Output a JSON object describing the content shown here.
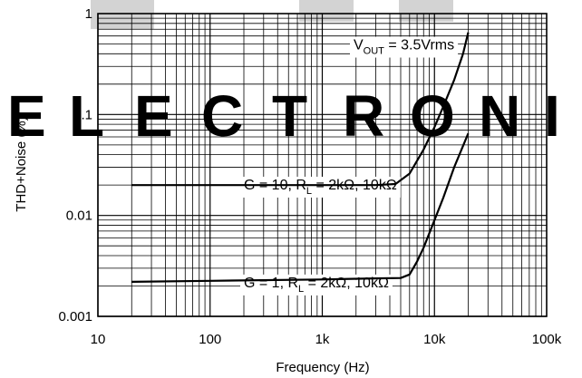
{
  "watermark": {
    "text": "ELECTRONIC",
    "color": "#d3d3d3"
  },
  "chart_data": {
    "type": "line",
    "title": "",
    "xlabel": "Frequency (Hz)",
    "ylabel": "THD+Noise (%)",
    "xscale": "log",
    "yscale": "log",
    "xlim": [
      10,
      100000
    ],
    "ylim": [
      0.001,
      1
    ],
    "grid": true,
    "x_ticks": [
      {
        "value": 10,
        "label": "10"
      },
      {
        "value": 100,
        "label": "100"
      },
      {
        "value": 1000,
        "label": "1k"
      },
      {
        "value": 10000,
        "label": "10k"
      },
      {
        "value": 100000,
        "label": "100k"
      }
    ],
    "y_ticks": [
      {
        "value": 0.001,
        "label": "0.001"
      },
      {
        "value": 0.01,
        "label": "0.01"
      },
      {
        "value": 0.1,
        "label": "0.1"
      },
      {
        "value": 1,
        "label": "1"
      }
    ],
    "series": [
      {
        "x": [
          20,
          100,
          1000,
          3000,
          4500,
          6000,
          8000,
          10000,
          12000,
          15000,
          18000,
          20000
        ],
        "y": [
          0.02,
          0.02,
          0.02,
          0.02,
          0.0205,
          0.026,
          0.045,
          0.075,
          0.12,
          0.22,
          0.4,
          0.65
        ]
      },
      {
        "x": [
          20,
          100,
          1000,
          3000,
          5000,
          6000,
          7000,
          8000,
          10000,
          12000,
          15000,
          20000
        ],
        "y": [
          0.0022,
          0.00225,
          0.00232,
          0.00238,
          0.0024,
          0.0026,
          0.0035,
          0.0048,
          0.009,
          0.015,
          0.03,
          0.065
        ]
      }
    ],
    "annotations": [
      {
        "x": 1900,
        "y": 0.5,
        "main": "V",
        "sub": "OUT",
        "rest": " = 3.5Vrms"
      },
      {
        "x": 200,
        "y": 0.0205,
        "main": "G = 10, R",
        "sub": "L",
        "rest": " = 2kΩ, 10kΩ"
      },
      {
        "x": 200,
        "y": 0.0022,
        "main": "G = 1, R",
        "sub": "L",
        "rest": " = 2kΩ, 10kΩ"
      }
    ]
  }
}
